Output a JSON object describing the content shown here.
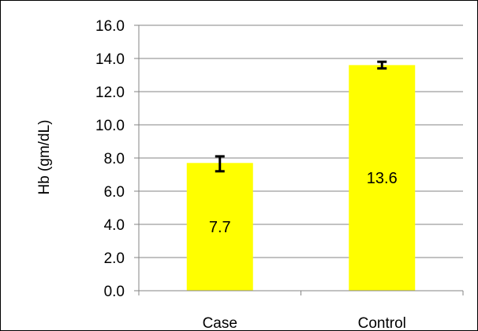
{
  "chart_data": {
    "type": "bar",
    "title": "",
    "xlabel": "",
    "ylabel": "Hb (gm/dL)",
    "categories": [
      "Case",
      "Control"
    ],
    "values": [
      7.7,
      13.6
    ],
    "data_labels": [
      "7.7",
      "13.6"
    ],
    "error_bars": [
      {
        "low": 7.2,
        "high": 8.1
      },
      {
        "low": 13.4,
        "high": 13.8
      }
    ],
    "ylim": [
      0,
      16
    ],
    "yticks": [
      0,
      2,
      4,
      6,
      8,
      10,
      12,
      14,
      16
    ],
    "ytick_labels": [
      "0.0",
      "2.0",
      "4.0",
      "6.0",
      "8.0",
      "10.0",
      "12.0",
      "14.0",
      "16.0"
    ],
    "grid": true,
    "legend": "none",
    "colors": {
      "bar": "#FFFF00",
      "grid": "#868686",
      "axis": "#868686",
      "error": "#000000",
      "text": "#000000"
    }
  }
}
